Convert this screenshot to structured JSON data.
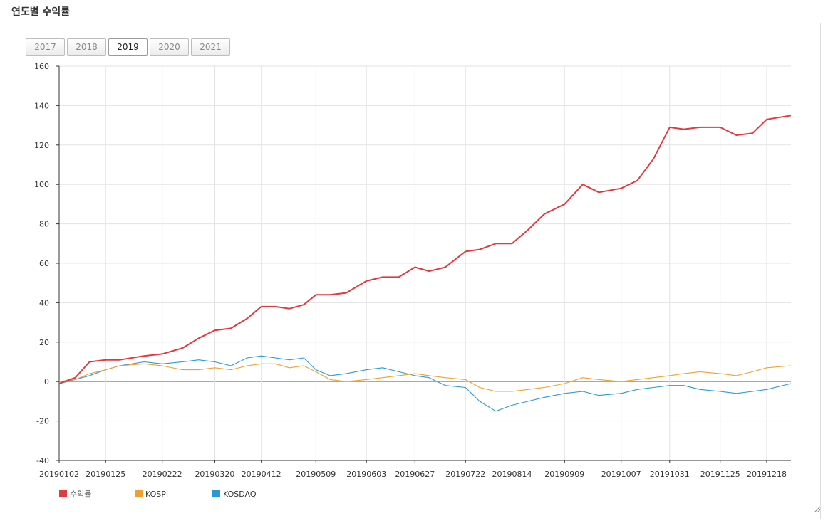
{
  "page": {
    "title": "연도별 수익률"
  },
  "year_tabs": [
    {
      "label": "2017",
      "active": false
    },
    {
      "label": "2018",
      "active": false
    },
    {
      "label": "2019",
      "active": true
    },
    {
      "label": "2020",
      "active": false
    },
    {
      "label": "2021",
      "active": false
    }
  ],
  "chart_data": {
    "type": "line",
    "title": "",
    "xlabel": "",
    "ylabel": "",
    "ylim": [
      -40,
      160
    ],
    "yticks": [
      -40,
      -20,
      0,
      20,
      40,
      60,
      80,
      100,
      120,
      140,
      160
    ],
    "xticks": [
      "20190102",
      "20190125",
      "20190222",
      "20190320",
      "20190412",
      "20190509",
      "20190603",
      "20190627",
      "20190722",
      "20190814",
      "20190909",
      "20191007",
      "20191031",
      "20191125",
      "20191218"
    ],
    "grid": true,
    "legend_position": "bottom-left",
    "x": [
      "20190102",
      "20190110",
      "20190117",
      "20190125",
      "20190201",
      "20190213",
      "20190222",
      "20190304",
      "20190312",
      "20190320",
      "20190328",
      "20190405",
      "20190412",
      "20190419",
      "20190426",
      "20190503",
      "20190509",
      "20190516",
      "20190524",
      "20190603",
      "20190611",
      "20190619",
      "20190627",
      "20190704",
      "20190712",
      "20190722",
      "20190729",
      "20190806",
      "20190814",
      "20190822",
      "20190830",
      "20190909",
      "20190918",
      "20190926",
      "20191007",
      "20191015",
      "20191023",
      "20191031",
      "20191107",
      "20191115",
      "20191125",
      "20191203",
      "20191211",
      "20191218",
      "20191230"
    ],
    "series": [
      {
        "name": "수익률",
        "color": "#e0393e",
        "values": [
          -1,
          2,
          10,
          11,
          11,
          13,
          14,
          17,
          22,
          26,
          27,
          32,
          38,
          38,
          37,
          39,
          44,
          44,
          45,
          51,
          53,
          53,
          58,
          56,
          58,
          66,
          67,
          70,
          70,
          77,
          85,
          90,
          100,
          96,
          98,
          102,
          113,
          129,
          128,
          129,
          129,
          125,
          126,
          133,
          135
        ]
      },
      {
        "name": "KOSPI",
        "color": "#f0a030",
        "values": [
          0,
          1,
          4,
          6,
          8,
          9,
          8,
          6,
          6,
          7,
          6,
          8,
          9,
          9,
          7,
          8,
          5,
          1,
          0,
          1,
          2,
          3,
          4,
          3,
          2,
          1,
          -3,
          -5,
          -5,
          -4,
          -3,
          -1,
          2,
          1,
          0,
          1,
          2,
          3,
          4,
          5,
          4,
          3,
          5,
          7,
          8
        ]
      },
      {
        "name": "KOSDAQ",
        "color": "#2a9ad4",
        "values": [
          -1,
          1,
          3,
          6,
          8,
          10,
          9,
          10,
          11,
          10,
          8,
          12,
          13,
          12,
          11,
          12,
          6,
          3,
          4,
          6,
          7,
          5,
          3,
          2,
          -2,
          -3,
          -10,
          -15,
          -12,
          -10,
          -8,
          -6,
          -5,
          -7,
          -6,
          -4,
          -3,
          -2,
          -2,
          -4,
          -5,
          -6,
          -5,
          -4,
          -1
        ]
      }
    ]
  }
}
